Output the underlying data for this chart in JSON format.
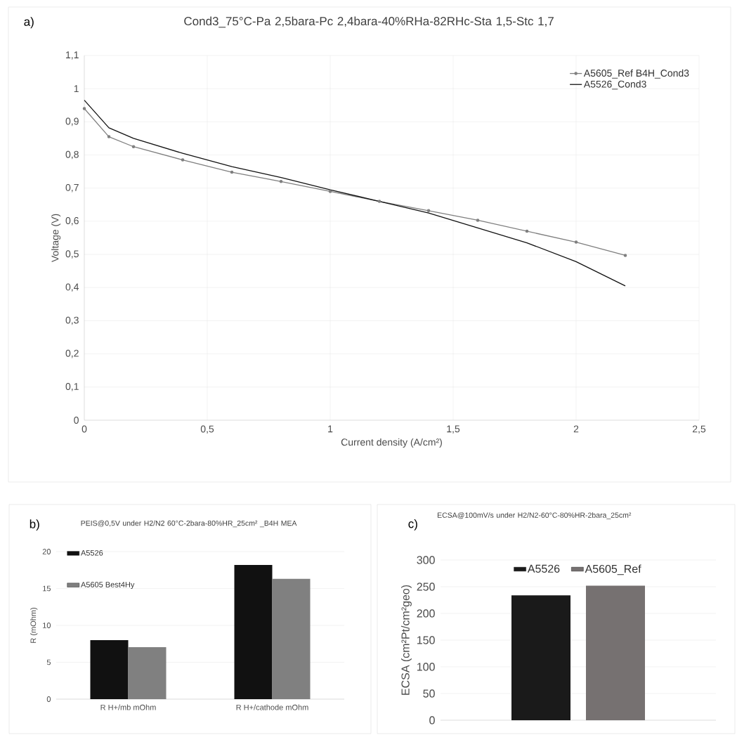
{
  "chart_data": [
    {
      "type": "line",
      "title": "Cond3_75°C-Pa 2,5bara-Pc 2,4bara-40%RHa-82RHc-Sta 1,5-Stc 1,7",
      "xlabel": "Current density (A/cm²)",
      "ylabel": "Voltage (V)",
      "annotations": [
        "a)"
      ],
      "x": [
        0,
        0.1,
        0.2,
        0.4,
        0.6,
        0.8,
        1.0,
        1.2,
        1.4,
        1.6,
        1.8,
        2.0,
        2.2
      ],
      "series": [
        {
          "name": "A5605_Ref B4H_Cond3",
          "color": "#7f7f7f",
          "marker": "circle",
          "values": [
            0.94,
            0.855,
            0.825,
            0.785,
            0.748,
            0.72,
            0.69,
            0.66,
            0.632,
            0.603,
            0.57,
            0.537,
            0.497
          ]
        },
        {
          "name": "A5526_Cond3",
          "color": "#111111",
          "marker": "none",
          "values": [
            0.965,
            0.882,
            0.85,
            0.805,
            0.765,
            0.732,
            0.695,
            0.66,
            0.625,
            0.58,
            0.535,
            0.478,
            0.405
          ]
        }
      ],
      "xlim": [
        0,
        2.5
      ],
      "ylim": [
        0,
        1.1
      ],
      "xticks": [
        0,
        {
          "value": 0.5,
          "label": "0,5"
        },
        1,
        {
          "value": 1.5,
          "label": "1,5"
        },
        2,
        {
          "value": 2.5,
          "label": "2,5"
        }
      ],
      "yticks": [
        0,
        {
          "value": 0.1,
          "label": "0,1"
        },
        {
          "value": 0.2,
          "label": "0,2"
        },
        {
          "value": 0.3,
          "label": "0,3"
        },
        {
          "value": 0.4,
          "label": "0,4"
        },
        {
          "value": 0.5,
          "label": "0,5"
        },
        {
          "value": 0.6,
          "label": "0,6"
        },
        {
          "value": 0.7,
          "label": "0,7"
        },
        {
          "value": 0.8,
          "label": "0,8"
        },
        {
          "value": 0.9,
          "label": "0,9"
        },
        1,
        {
          "value": 1.1,
          "label": "1,1"
        }
      ],
      "grid": true,
      "legend": "top right",
      "line_style": "solid"
    },
    {
      "type": "bar",
      "title": "PEIS@0,5V under H2/N2 60°C-2bara-80%HR_25cm² _B4H MEA",
      "ylabel": "R (mOhm)",
      "annotations": [
        "b)"
      ],
      "categories": [
        "R H+/mb mOhm",
        "R H+/cathode mOhm"
      ],
      "series": [
        {
          "name": "A5526",
          "color": "#111111",
          "values": [
            8.0,
            18.2
          ]
        },
        {
          "name": "A5605 Best4Hy",
          "color": "#808080",
          "values": [
            7.05,
            16.3
          ]
        }
      ],
      "ylim": [
        0,
        20
      ],
      "yticks": [
        0,
        5,
        10,
        15,
        20
      ],
      "grid": "y",
      "legend": "top left"
    },
    {
      "type": "bar",
      "title": "ECSA@100mV/s under H2/N2-60°C-80%HR-2bara_25cm²",
      "ylabel": "ECSA (cm²Pt/cm²geo)",
      "annotations": [
        "c)"
      ],
      "categories": [
        null
      ],
      "series": [
        {
          "name": "A5526",
          "color": "#1a1a1a",
          "values": [
            234
          ]
        },
        {
          "name": "A5605_Ref",
          "color": "#767171",
          "values": [
            252
          ]
        }
      ],
      "ylim": [
        0,
        300
      ],
      "yticks": [
        0,
        50,
        100,
        150,
        200,
        250,
        300
      ],
      "grid": "y",
      "legend": "top"
    }
  ]
}
